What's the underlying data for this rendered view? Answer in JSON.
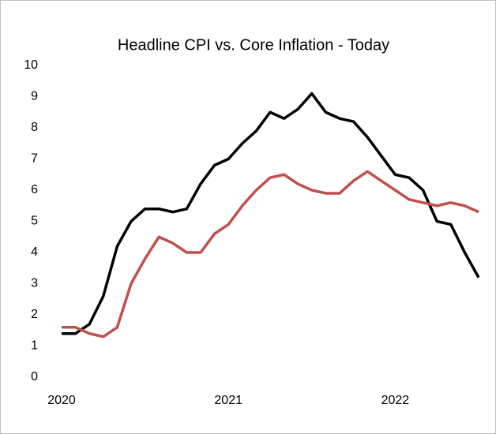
{
  "chart_data": {
    "type": "line",
    "title": "Headline CPI vs. Core Inflation - Today",
    "categories": [
      "2020",
      null,
      null,
      null,
      null,
      null,
      null,
      null,
      null,
      null,
      null,
      null,
      "2021",
      null,
      null,
      null,
      null,
      null,
      null,
      null,
      null,
      null,
      null,
      null,
      "2022",
      null,
      null,
      null,
      null,
      null,
      null
    ],
    "series": [
      {
        "color": "#000000",
        "values": [
          1.4,
          1.4,
          1.7,
          2.6,
          4.2,
          5.0,
          5.4,
          5.4,
          5.3,
          5.4,
          6.2,
          6.8,
          7.0,
          7.5,
          7.9,
          8.5,
          8.3,
          8.6,
          9.1,
          8.5,
          8.3,
          8.2,
          7.7,
          7.1,
          6.5,
          6.4,
          6.0,
          5.0,
          4.9,
          4.0,
          3.2
        ]
      },
      {
        "color": "#c0504d",
        "values": [
          1.6,
          1.6,
          1.4,
          1.3,
          1.6,
          3.0,
          3.8,
          4.5,
          4.3,
          4.0,
          4.0,
          4.6,
          4.9,
          5.5,
          6.0,
          6.4,
          6.5,
          6.2,
          6.0,
          5.9,
          5.9,
          6.3,
          6.6,
          6.3,
          6.0,
          5.7,
          5.6,
          5.5,
          5.6,
          5.5,
          5.3
        ]
      }
    ],
    "ylim": [
      0,
      10
    ],
    "yticks": [
      0,
      1,
      2,
      3,
      4,
      5,
      6,
      7,
      8,
      9,
      10
    ],
    "grid": false
  }
}
